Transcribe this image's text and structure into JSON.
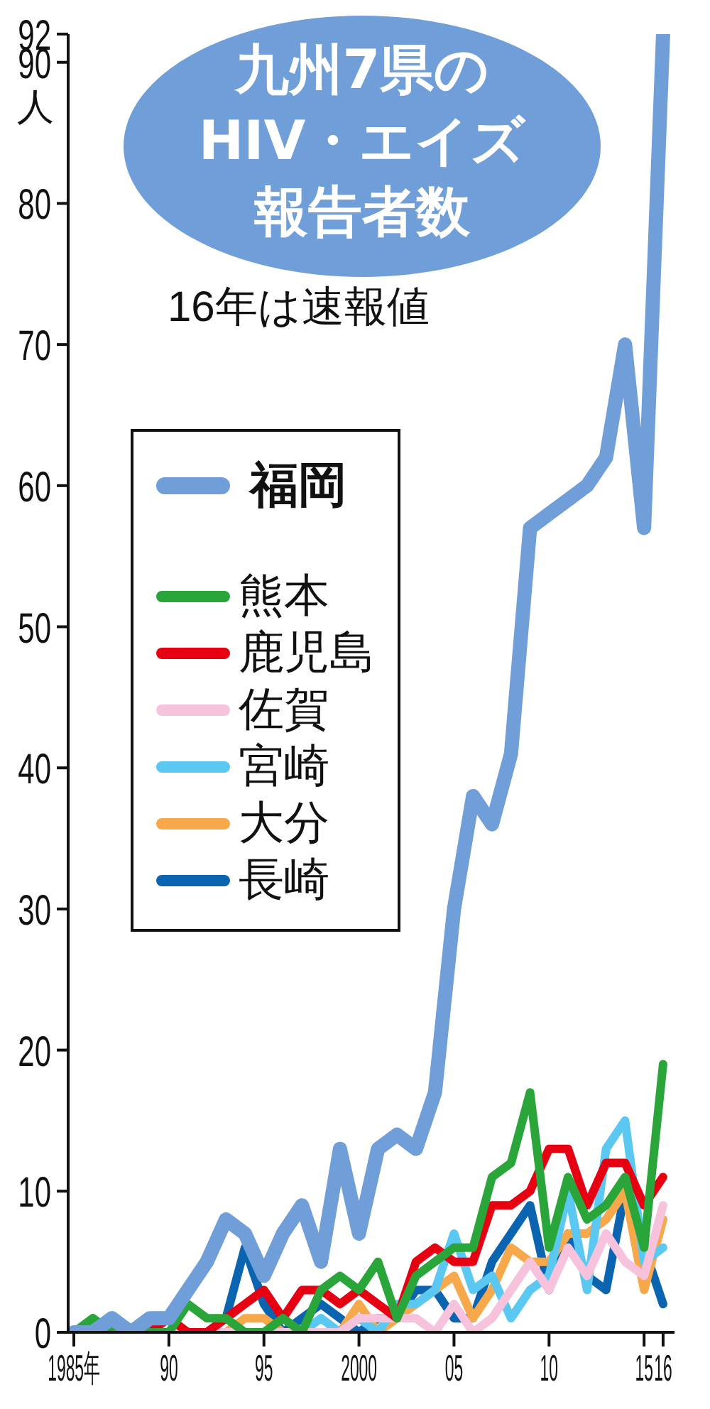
{
  "chart_data": {
    "type": "line",
    "title": "九州7県のHIV・エイズ報告者数",
    "subtitle": "16年は速報値",
    "ylabel": "人",
    "x": [
      1985,
      1986,
      1987,
      1988,
      1989,
      1990,
      1991,
      1992,
      1993,
      1994,
      1995,
      1996,
      1997,
      1998,
      1999,
      2000,
      2001,
      2002,
      2003,
      2004,
      2005,
      2006,
      2007,
      2008,
      2009,
      2010,
      2011,
      2012,
      2013,
      2014,
      2015,
      2016
    ],
    "series": [
      {
        "name": "福岡",
        "color": "#6f9ed8",
        "values": [
          0,
          0,
          1,
          0,
          1,
          1,
          3,
          5,
          8,
          7,
          4,
          7,
          9,
          5,
          13,
          7,
          13,
          14,
          13,
          17,
          30,
          38,
          36,
          41,
          57,
          58,
          59,
          60,
          62,
          70,
          57,
          92
        ]
      },
      {
        "name": "熊本",
        "color": "#2aa53a",
        "values": [
          0,
          1,
          0,
          0,
          0,
          0,
          2,
          1,
          1,
          0,
          0,
          1,
          0,
          3,
          4,
          3,
          5,
          1,
          4,
          5,
          6,
          6,
          11,
          12,
          17,
          6,
          11,
          8,
          9,
          11,
          6,
          19
        ]
      },
      {
        "name": "鹿児島",
        "color": "#e60012",
        "values": [
          null,
          null,
          null,
          0,
          0,
          1,
          0,
          0,
          1,
          2,
          3,
          1,
          3,
          3,
          2,
          3,
          2,
          1,
          5,
          6,
          5,
          5,
          9,
          9,
          10,
          13,
          13,
          9,
          12,
          12,
          9,
          11
        ]
      },
      {
        "name": "佐賀",
        "color": "#f7c3dc",
        "values": [
          0,
          0,
          0,
          0,
          0,
          0,
          0,
          0,
          0,
          0,
          0,
          0,
          0,
          0,
          0,
          1,
          1,
          1,
          1,
          0,
          2,
          0,
          1,
          3,
          5,
          3,
          6,
          4,
          7,
          5,
          4,
          9
        ]
      },
      {
        "name": "宮崎",
        "color": "#5bc8f2",
        "values": [
          0,
          0,
          0,
          0,
          0,
          0,
          0,
          0,
          0,
          0,
          0,
          0,
          0,
          1,
          0,
          1,
          0,
          2,
          2,
          3,
          7,
          3,
          4,
          1,
          3,
          4,
          10,
          3,
          13,
          15,
          5,
          6
        ]
      },
      {
        "name": "大分",
        "color": "#f7a84a",
        "values": [
          null,
          null,
          null,
          null,
          null,
          null,
          null,
          0,
          0,
          1,
          1,
          0,
          0,
          null,
          0,
          2,
          0,
          1,
          2,
          3,
          4,
          1,
          3,
          6,
          5,
          5,
          7,
          7,
          8,
          10,
          3,
          8
        ]
      },
      {
        "name": "長崎",
        "color": "#0b64b0",
        "values": [
          0,
          0,
          0,
          0,
          0,
          0,
          0,
          0,
          1,
          6,
          2,
          0,
          1,
          2,
          1,
          0,
          1,
          1,
          3,
          3,
          1,
          1,
          5,
          7,
          9,
          3,
          7,
          4,
          3,
          10,
          6,
          2
        ]
      }
    ],
    "xlim": [
      1984.7,
      2016.6
    ],
    "xticks": [
      {
        "value": 1985,
        "label": "1985年"
      },
      {
        "value": 1990,
        "label": "90"
      },
      {
        "value": 1995,
        "label": "95"
      },
      2000,
      {
        "value": 2005,
        "label": "05"
      },
      {
        "value": 2010,
        "label": "10"
      },
      {
        "value": 2015,
        "label": "15"
      },
      {
        "value": 2016,
        "label": "16"
      }
    ],
    "ylim": [
      0,
      92
    ],
    "yticks": [
      0,
      10,
      20,
      30,
      40,
      50,
      60,
      70,
      80,
      90,
      92
    ],
    "grid": false,
    "legend": "top left",
    "marker": "none",
    "line_style": "solid"
  }
}
